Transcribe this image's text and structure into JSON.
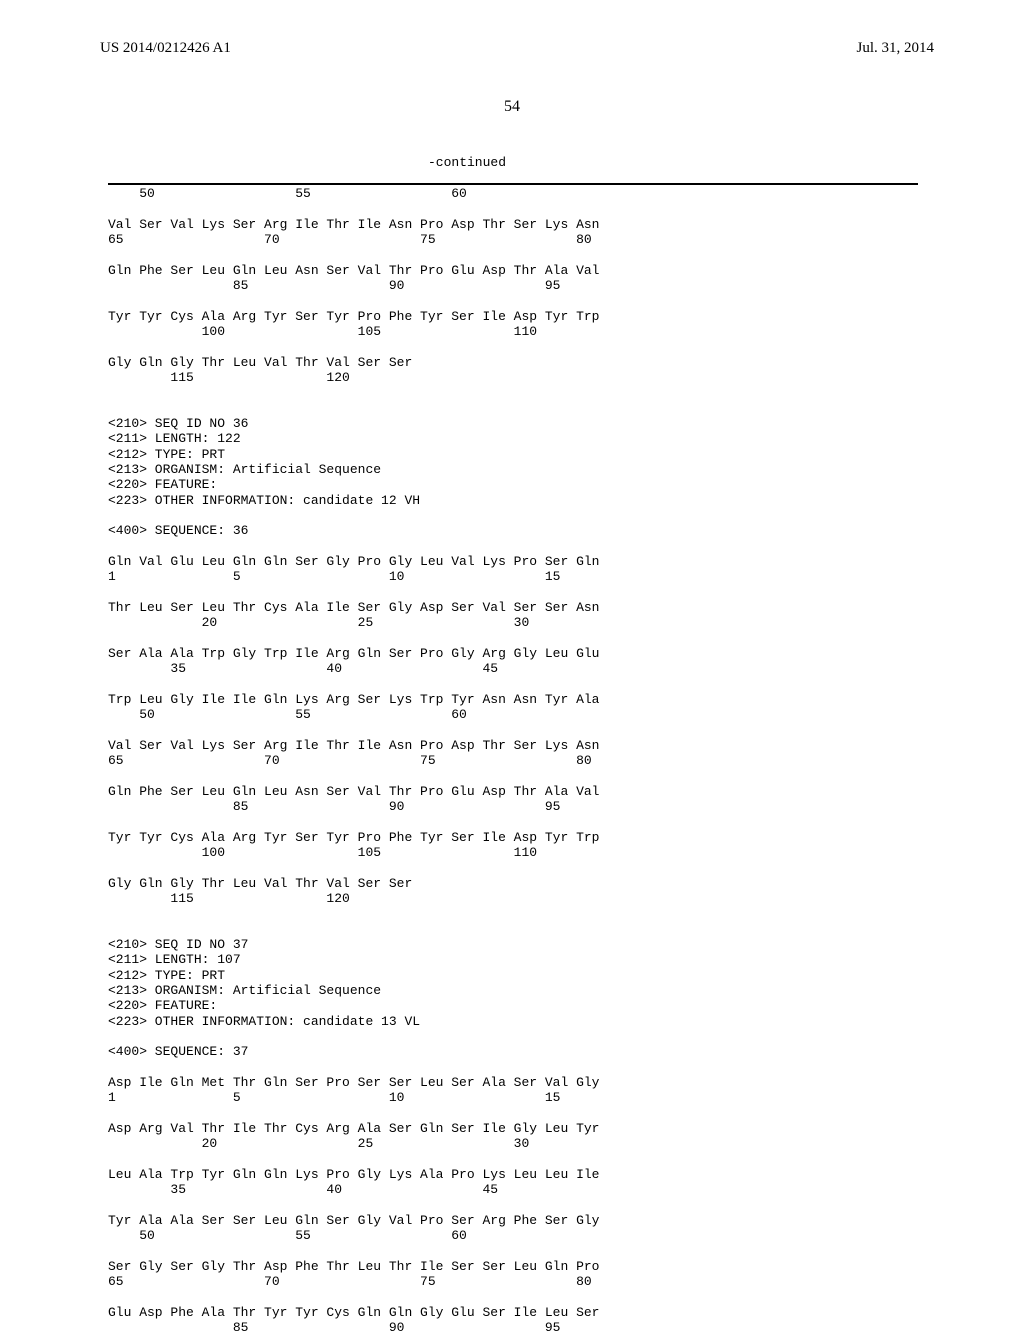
{
  "header": {
    "pub_num": "US 2014/0212426 A1",
    "pub_date": "Jul. 31, 2014"
  },
  "page_number": "54",
  "continued_label": "-continued",
  "sequence_text": "    50                  55                  60\n\nVal Ser Val Lys Ser Arg Ile Thr Ile Asn Pro Asp Thr Ser Lys Asn\n65                  70                  75                  80\n\nGln Phe Ser Leu Gln Leu Asn Ser Val Thr Pro Glu Asp Thr Ala Val\n                85                  90                  95\n\nTyr Tyr Cys Ala Arg Tyr Ser Tyr Pro Phe Tyr Ser Ile Asp Tyr Trp\n            100                 105                 110\n\nGly Gln Gly Thr Leu Val Thr Val Ser Ser\n        115                 120\n\n\n<210> SEQ ID NO 36\n<211> LENGTH: 122\n<212> TYPE: PRT\n<213> ORGANISM: Artificial Sequence\n<220> FEATURE:\n<223> OTHER INFORMATION: candidate 12 VH\n\n<400> SEQUENCE: 36\n\nGln Val Glu Leu Gln Gln Ser Gly Pro Gly Leu Val Lys Pro Ser Gln\n1               5                   10                  15\n\nThr Leu Ser Leu Thr Cys Ala Ile Ser Gly Asp Ser Val Ser Ser Asn\n            20                  25                  30\n\nSer Ala Ala Trp Gly Trp Ile Arg Gln Ser Pro Gly Arg Gly Leu Glu\n        35                  40                  45\n\nTrp Leu Gly Ile Ile Gln Lys Arg Ser Lys Trp Tyr Asn Asn Tyr Ala\n    50                  55                  60\n\nVal Ser Val Lys Ser Arg Ile Thr Ile Asn Pro Asp Thr Ser Lys Asn\n65                  70                  75                  80\n\nGln Phe Ser Leu Gln Leu Asn Ser Val Thr Pro Glu Asp Thr Ala Val\n                85                  90                  95\n\nTyr Tyr Cys Ala Arg Tyr Ser Tyr Pro Phe Tyr Ser Ile Asp Tyr Trp\n            100                 105                 110\n\nGly Gln Gly Thr Leu Val Thr Val Ser Ser\n        115                 120\n\n\n<210> SEQ ID NO 37\n<211> LENGTH: 107\n<212> TYPE: PRT\n<213> ORGANISM: Artificial Sequence\n<220> FEATURE:\n<223> OTHER INFORMATION: candidate 13 VL\n\n<400> SEQUENCE: 37\n\nAsp Ile Gln Met Thr Gln Ser Pro Ser Ser Leu Ser Ala Ser Val Gly\n1               5                   10                  15\n\nAsp Arg Val Thr Ile Thr Cys Arg Ala Ser Gln Ser Ile Gly Leu Tyr\n            20                  25                  30\n\nLeu Ala Trp Tyr Gln Gln Lys Pro Gly Lys Ala Pro Lys Leu Leu Ile\n        35                  40                  45\n\nTyr Ala Ala Ser Ser Leu Gln Ser Gly Val Pro Ser Arg Phe Ser Gly\n    50                  55                  60\n\nSer Gly Ser Gly Thr Asp Phe Thr Leu Thr Ile Ser Ser Leu Gln Pro\n65                  70                  75                  80\n\nGlu Asp Phe Ala Thr Tyr Tyr Cys Gln Gln Gly Glu Ser Ile Leu Ser\n                85                  90                  95"
}
